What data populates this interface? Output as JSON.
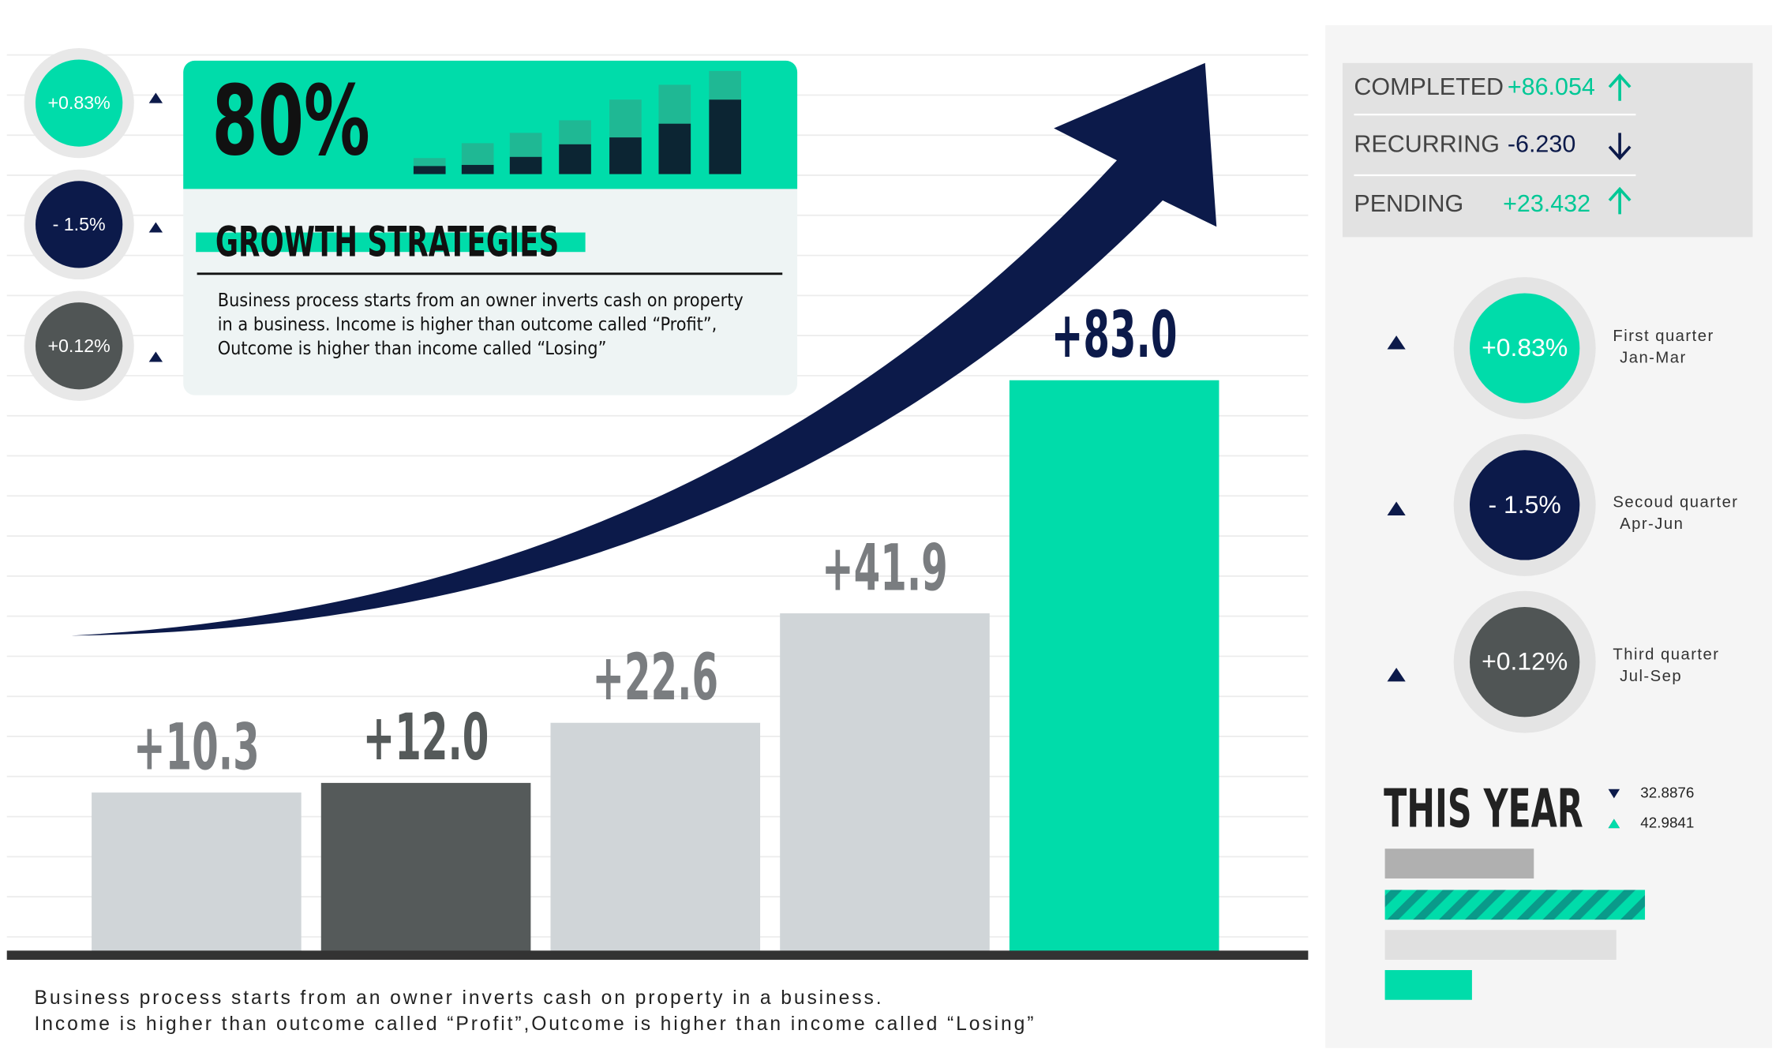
{
  "chart_data": {
    "type": "bar",
    "categories": [
      null,
      null,
      null,
      null,
      null
    ],
    "values": [
      10.3,
      12.0,
      22.6,
      41.9,
      83.0
    ],
    "value_labels": [
      "+10.3",
      "+12.0",
      "+22.6",
      "+41.9",
      "+83.0"
    ],
    "colors": [
      "#d0d5d8",
      "#555a5a",
      "#d0d5d8",
      "#d0d5d8",
      "#00dcaa"
    ],
    "value_label_colors": [
      "#7a7d80",
      "#555a5a",
      "#7a7d80",
      "#7a7d80",
      "#0c1a4a"
    ]
  },
  "side_badges": [
    {
      "label": "+0.83%"
    },
    {
      "label": "- 1.5%"
    },
    {
      "label": "+0.12%"
    }
  ],
  "header": {
    "percent": "80%",
    "title": "GROWTH STRATEGIES",
    "text": [
      "Business process starts from an owner inverts cash on property",
      "in a business. Income is higher than outcome called “Profit”,",
      "Outcome is higher than income called “Losing”"
    ]
  },
  "stats": [
    {
      "label": "COMPLETED",
      "value": "+86.054"
    },
    {
      "label": "RECURRING",
      "value": "-6.230"
    },
    {
      "label": "PENDING",
      "value": "+23.432"
    }
  ],
  "quarters": [
    {
      "value": "+0.83%",
      "name": "First quarter",
      "months": "Jan-Mar"
    },
    {
      "value": "- 1.5%",
      "name": "Secoud quarter",
      "months": "Apr-Jun"
    },
    {
      "value": "+0.12%",
      "name": "Third quarter",
      "months": "Jul-Sep"
    }
  ],
  "this_year": {
    "title": "THIS YEAR",
    "down": "32.8876",
    "up": "42.9841"
  },
  "footer": [
    "Business process starts from an owner inverts cash on property in a business.",
    "Income is higher than outcome called “Profit”,Outcome is higher than income called “Losing”"
  ]
}
